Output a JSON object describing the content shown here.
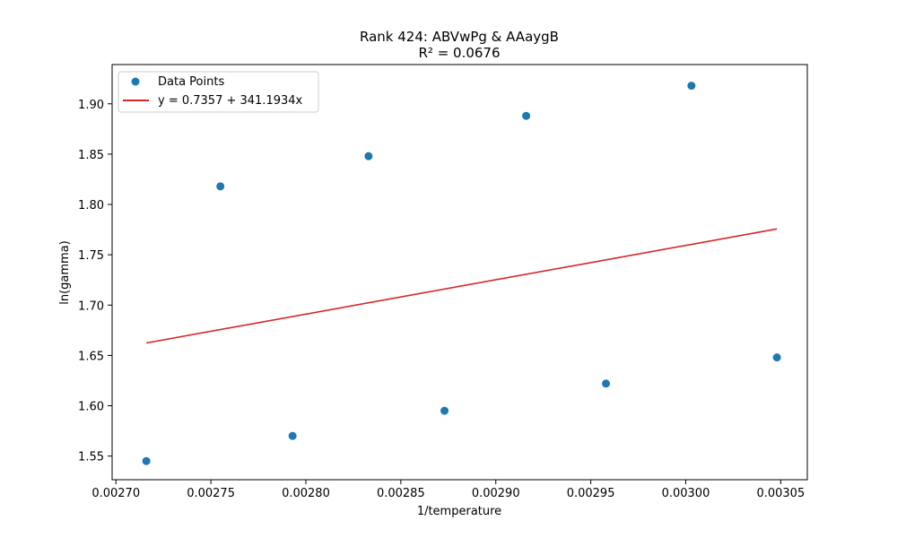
{
  "chart_data": {
    "type": "scatter",
    "title": "Rank 424: ABVwPg & AAaygB",
    "subtitle": "R² = 0.0676",
    "xlabel": "1/temperature",
    "ylabel": "ln(gamma)",
    "xlim": [
      0.002698,
      0.003064
    ],
    "ylim": [
      1.5265,
      1.939
    ],
    "xticks": [
      0.0027,
      0.00275,
      0.0028,
      0.00285,
      0.0029,
      0.00295,
      0.003,
      0.00305
    ],
    "xtick_labels": [
      "0.00270",
      "0.00275",
      "0.00280",
      "0.00285",
      "0.00290",
      "0.00295",
      "0.00300",
      "0.00305"
    ],
    "yticks": [
      1.55,
      1.6,
      1.65,
      1.7,
      1.75,
      1.8,
      1.85,
      1.9
    ],
    "ytick_labels": [
      "1.55",
      "1.60",
      "1.65",
      "1.70",
      "1.75",
      "1.80",
      "1.85",
      "1.90"
    ],
    "grid": false,
    "legend_position": "top-left",
    "series": [
      {
        "name": "Data Points",
        "kind": "scatter",
        "color": "#1f77b4",
        "points": [
          {
            "x": 0.002716,
            "y": 1.545
          },
          {
            "x": 0.002755,
            "y": 1.818
          },
          {
            "x": 0.002793,
            "y": 1.57
          },
          {
            "x": 0.002833,
            "y": 1.848
          },
          {
            "x": 0.002873,
            "y": 1.595
          },
          {
            "x": 0.002916,
            "y": 1.888
          },
          {
            "x": 0.002958,
            "y": 1.622
          },
          {
            "x": 0.003003,
            "y": 1.918
          },
          {
            "x": 0.003048,
            "y": 1.648
          }
        ]
      },
      {
        "name": "y = 0.7357 + 341.1934x",
        "kind": "line",
        "color": "#d62728",
        "intercept": 0.7357,
        "slope": 341.1934,
        "x_range": [
          0.002716,
          0.003048
        ]
      }
    ]
  }
}
